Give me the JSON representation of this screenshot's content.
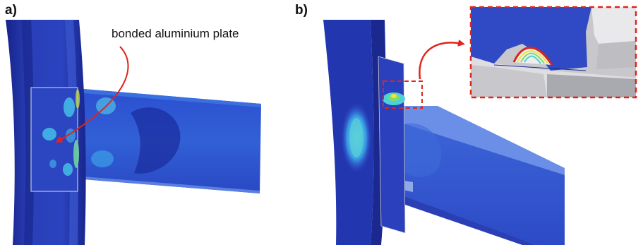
{
  "panels": [
    {
      "label": "a)",
      "annotation": "bonded aluminium plate"
    },
    {
      "label": "b)"
    }
  ],
  "colors": {
    "fe_dark_blue": "#1a2a9a",
    "fe_blue": "#2f47c6",
    "fe_light_blue": "#3aa0e6",
    "fe_cyan": "#4fd0d8",
    "fe_green": "#7be06a",
    "fe_yellow": "#f3e33c",
    "fe_red": "#d4261e",
    "arrow_red": "#e0241b",
    "inset_border": "#e0241b"
  }
}
